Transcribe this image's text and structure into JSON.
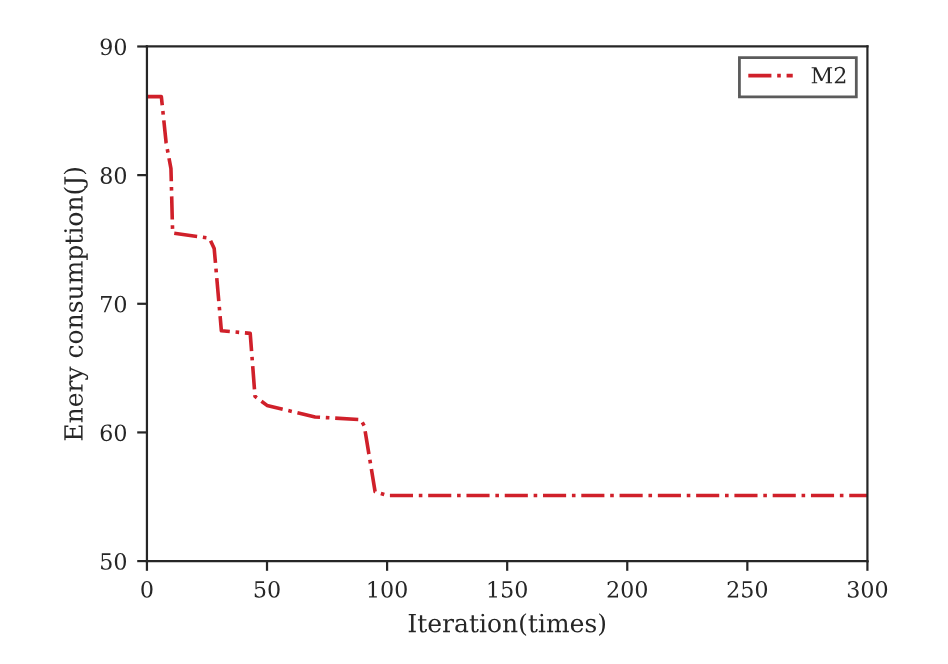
{
  "chart_data": {
    "type": "line",
    "xlabel": "Iteration(times)",
    "ylabel": "Enery consumption(J)",
    "xlim": [
      0,
      300
    ],
    "ylim": [
      50,
      90
    ],
    "xticks": [
      0,
      50,
      100,
      150,
      200,
      250,
      300
    ],
    "yticks": [
      50,
      60,
      70,
      80,
      90
    ],
    "legend": "top right",
    "line_style": "dashdot",
    "grid": false,
    "series": [
      {
        "name": "M2",
        "color": "#d0202a",
        "x": [
          0,
          6,
          8,
          10,
          10.7,
          26,
          28,
          31,
          43,
          45,
          50,
          70,
          89,
          90.5,
          95,
          100,
          300
        ],
        "values": [
          86.1,
          86.1,
          82.5,
          80.5,
          75.5,
          75.1,
          74.3,
          67.9,
          67.7,
          62.8,
          62.1,
          61.2,
          61.0,
          60.5,
          55.4,
          55.1,
          55.1
        ]
      }
    ]
  }
}
